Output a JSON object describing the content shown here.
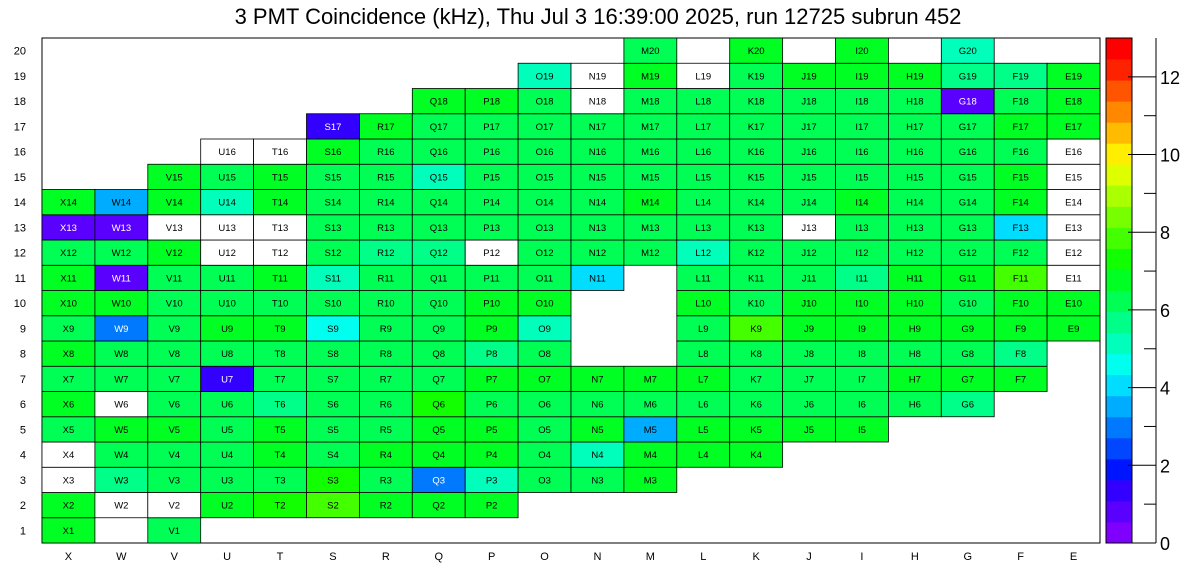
{
  "chart_data": {
    "type": "heatmap",
    "title": "3 PMT Coincidence (kHz), Thu Jul  3 16:39:00 2025, run 12725 subrun 452",
    "x_categories": [
      "X",
      "W",
      "V",
      "U",
      "T",
      "S",
      "R",
      "Q",
      "P",
      "O",
      "N",
      "M",
      "L",
      "K",
      "J",
      "I",
      "H",
      "G",
      "F",
      "E"
    ],
    "y_categories": [
      "1",
      "2",
      "3",
      "4",
      "5",
      "6",
      "7",
      "8",
      "9",
      "10",
      "11",
      "12",
      "13",
      "14",
      "15",
      "16",
      "17",
      "18",
      "19",
      "20"
    ],
    "zlim": [
      0,
      13
    ],
    "colorbar_ticks": [
      "0",
      "2",
      "4",
      "6",
      "8",
      "10",
      "12"
    ],
    "palette": [
      "#7f00ff",
      "#5a00ff",
      "#3300ff",
      "#0015ff",
      "#0047ff",
      "#0079ff",
      "#00acff",
      "#00ddff",
      "#00ffee",
      "#00ffbb",
      "#00ff88",
      "#00ff55",
      "#00ff22",
      "#11ff00",
      "#44ff00",
      "#77ff00",
      "#aaff00",
      "#ddff00",
      "#ffee00",
      "#ffbb00",
      "#ff8800",
      "#ff5500",
      "#ff2200",
      "#ff0000"
    ],
    "rows": {
      "20": [
        null,
        null,
        null,
        null,
        null,
        null,
        null,
        null,
        null,
        null,
        null,
        6.4,
        null,
        6.6,
        null,
        6.8,
        null,
        5.3,
        null,
        null
      ],
      "19": [
        null,
        null,
        null,
        null,
        null,
        null,
        null,
        null,
        null,
        5.0,
        0,
        6.5,
        0,
        6.2,
        6.8,
        6.7,
        6.6,
        5.6,
        5.7,
        6.6
      ],
      "18": [
        null,
        null,
        null,
        null,
        null,
        null,
        null,
        6.5,
        6.5,
        6.3,
        0,
        6.4,
        6.2,
        6.3,
        6.1,
        6.3,
        6.3,
        0.9,
        6.4,
        6.6
      ],
      "17": [
        null,
        null,
        null,
        null,
        null,
        1.2,
        6.5,
        6.4,
        6.2,
        6.2,
        6.2,
        6.3,
        6.2,
        6.2,
        6.2,
        6.2,
        6.4,
        6.4,
        6.7,
        6.6
      ],
      "16": [
        null,
        null,
        null,
        0,
        0,
        6.5,
        6.2,
        6.1,
        6.2,
        6.1,
        6.1,
        6.4,
        6.2,
        6.2,
        6.2,
        6.2,
        6.1,
        6.1,
        6.2,
        0
      ],
      "15": [
        null,
        null,
        6.6,
        6.2,
        6.5,
        6.1,
        6.0,
        5.1,
        6.2,
        6.0,
        6.0,
        6.1,
        6.1,
        6.0,
        6.2,
        6.1,
        6.1,
        6.4,
        6.5,
        0
      ],
      "14": [
        6.8,
        3.3,
        6.5,
        5.2,
        6.7,
        6.4,
        6.2,
        6.2,
        6.3,
        6.2,
        6.1,
        6.6,
        6.2,
        6.2,
        6.4,
        6.5,
        6.3,
        6.2,
        6.5,
        0
      ],
      "13": [
        0.8,
        0.8,
        0,
        0,
        0,
        6.2,
        6.2,
        6.2,
        6.3,
        6.1,
        6.1,
        6.1,
        6.2,
        6.3,
        0,
        6.1,
        6.3,
        6.4,
        4.1,
        0
      ],
      "12": [
        6.1,
        6.4,
        6.5,
        0,
        0,
        6.0,
        5.8,
        5.6,
        0,
        6.0,
        6.1,
        6.2,
        5.4,
        6.2,
        6.0,
        6.1,
        6.1,
        6.2,
        6.4,
        0
      ],
      "11": [
        6.7,
        0.8,
        6.4,
        6.2,
        6.6,
        5.4,
        6.2,
        6.2,
        6.2,
        6.2,
        4.2,
        null,
        6.2,
        6.3,
        6.0,
        5.8,
        7.0,
        6.5,
        7.7,
        0
      ],
      "10": [
        6.9,
        6.6,
        6.4,
        6.4,
        6.4,
        6.4,
        6.4,
        6.4,
        6.6,
        6.7,
        null,
        null,
        6.7,
        6.4,
        6.5,
        6.5,
        6.6,
        6.4,
        6.8,
        6.8
      ],
      "9": [
        6.3,
        3.2,
        6.2,
        6.6,
        6.5,
        4.5,
        6.2,
        6.2,
        6.8,
        5.4,
        null,
        null,
        6.4,
        7.8,
        6.5,
        6.5,
        6.6,
        6.5,
        6.6,
        6.6
      ],
      "8": [
        6.5,
        6.2,
        6.2,
        6.3,
        6.4,
        6.4,
        6.2,
        6.2,
        5.7,
        6.2,
        null,
        null,
        6.3,
        6.3,
        6.3,
        6.3,
        6.3,
        6.2,
        5.5,
        null
      ],
      "7": [
        6.3,
        6.3,
        6.4,
        1.3,
        6.4,
        6.3,
        6.2,
        6.3,
        6.5,
        6.5,
        6.6,
        6.5,
        6.5,
        6.4,
        6.4,
        6.4,
        6.6,
        6.9,
        6.7,
        null
      ],
      "6": [
        6.5,
        0,
        6.3,
        6.3,
        5.9,
        6.3,
        6.0,
        7.3,
        6.2,
        6.1,
        6.1,
        6.1,
        6.2,
        6.2,
        6.2,
        6.2,
        6.0,
        5.6,
        null,
        null
      ],
      "5": [
        6.3,
        6.5,
        6.5,
        6.4,
        6.7,
        6.3,
        6.2,
        6.6,
        6.6,
        6.4,
        6.5,
        3.3,
        6.5,
        6.5,
        6.6,
        6.6,
        null,
        null,
        null,
        null
      ],
      "4": [
        0,
        6.4,
        6.4,
        6.4,
        6.6,
        6.4,
        6.5,
        6.5,
        6.5,
        6.3,
        5.0,
        6.5,
        6.6,
        6.7,
        null,
        null,
        null,
        null,
        null,
        null
      ],
      "3": [
        0,
        5.6,
        6.4,
        6.4,
        6.4,
        7.5,
        6.4,
        3.0,
        5.2,
        6.4,
        6.4,
        6.5,
        null,
        null,
        null,
        null,
        null,
        null,
        null,
        null
      ],
      "2": [
        6.6,
        0,
        0,
        6.8,
        7.1,
        7.8,
        6.6,
        6.6,
        6.6,
        null,
        null,
        null,
        null,
        null,
        null,
        null,
        null,
        null,
        null,
        null
      ],
      "1": [
        6.6,
        null,
        6.2,
        null,
        null,
        null,
        null,
        null,
        null,
        null,
        null,
        null,
        null,
        null,
        null,
        null,
        null,
        null,
        null,
        null
      ]
    }
  }
}
